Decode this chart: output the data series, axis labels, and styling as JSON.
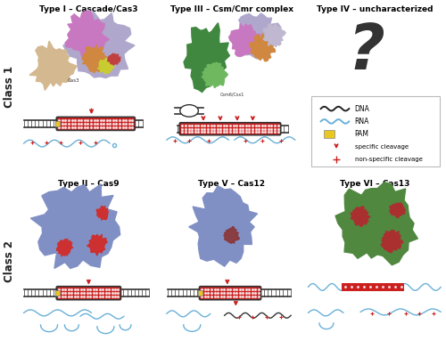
{
  "class1_bg": "#dce8f5",
  "class2_bg": "#f5ede0",
  "border_color": "#999999",
  "cell_titles": [
    [
      "Type I – Cascade/Cas3",
      "Type III – Csm/Cmr complex",
      "Type IV – uncharacterized"
    ],
    [
      "Type II – Cas9",
      "Type V – Cas12",
      "Type VI – Cas13"
    ]
  ],
  "class_labels": [
    "Class 1",
    "Class 2"
  ],
  "dna_color": "#222222",
  "rna_color": "#6ab0d8",
  "pam_color": "#e8c820",
  "cleavage_color": "#cc2020",
  "dna_fill": "#cc2020",
  "title_fontsize": 6.5,
  "class_fontsize": 8.5
}
